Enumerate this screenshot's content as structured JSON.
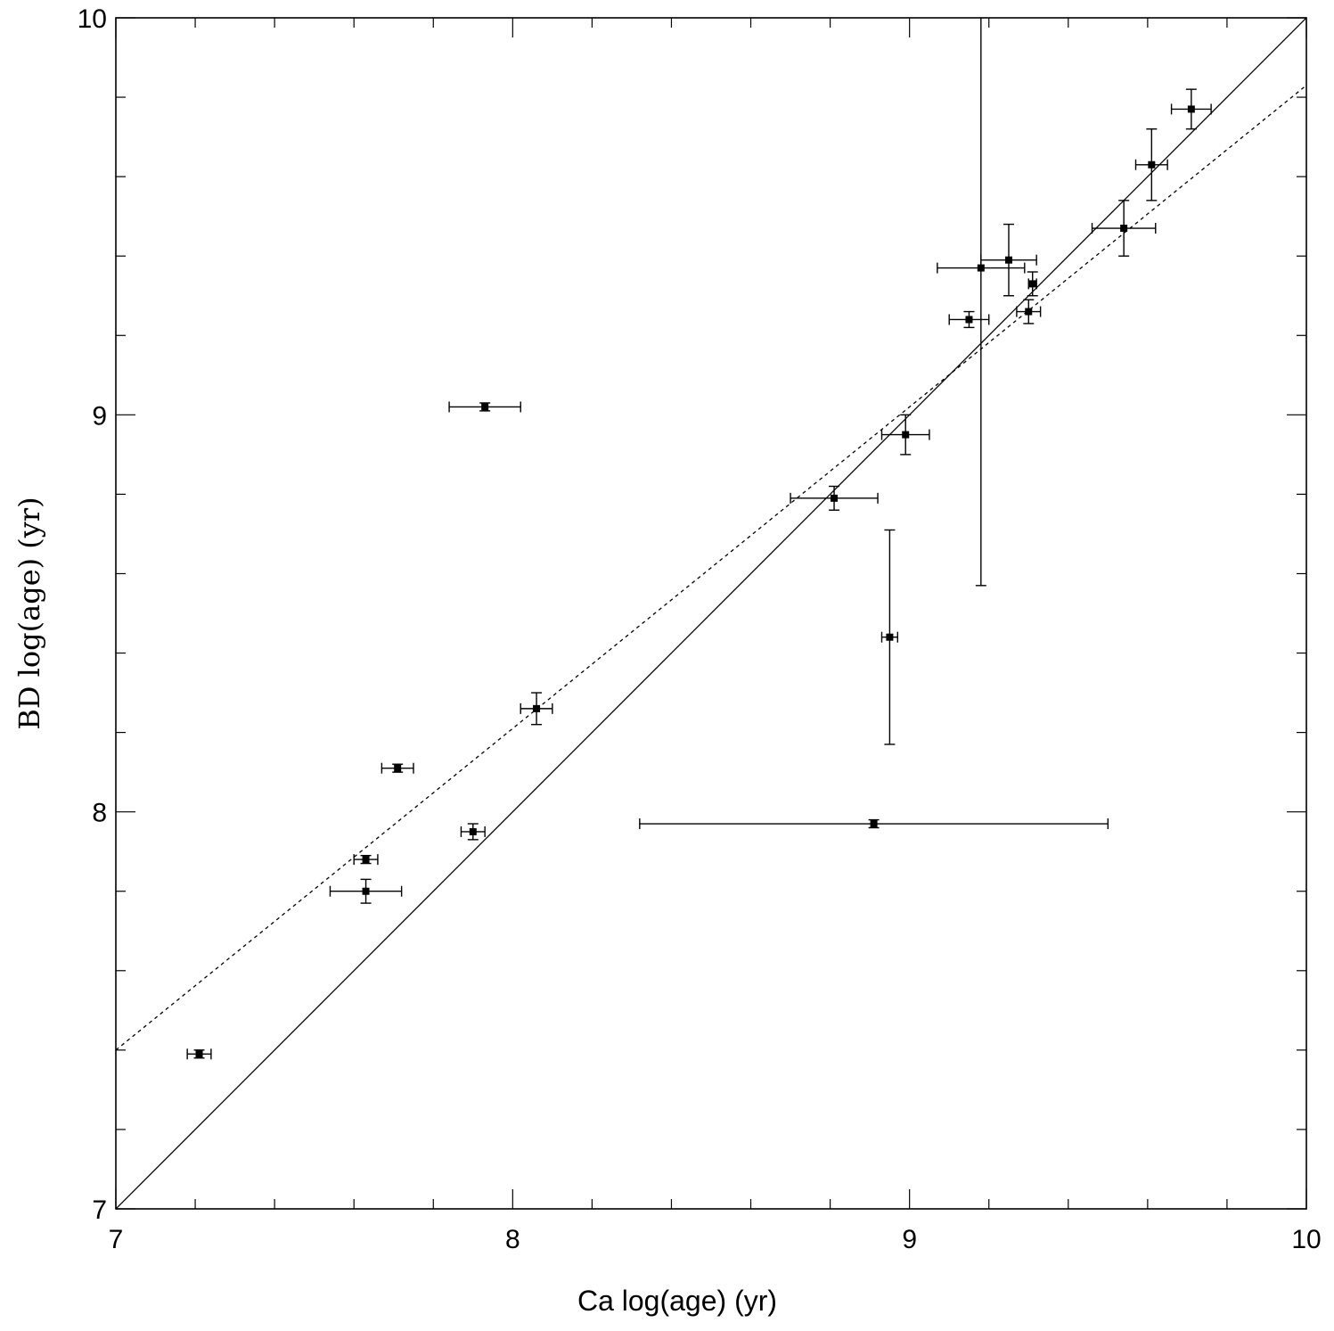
{
  "chart_data": {
    "type": "scatter",
    "title": "",
    "xlabel": "Ca log(age) (yr)",
    "ylabel": "BD log(age) (yr)",
    "xlim": [
      7,
      10
    ],
    "ylim": [
      7,
      10
    ],
    "x_ticks": [
      "7",
      "8",
      "9",
      "10"
    ],
    "y_ticks": [
      "7",
      "8",
      "9",
      "10"
    ],
    "grid": false,
    "legend": "none",
    "reference_lines": [
      {
        "style": "solid",
        "x": [
          7,
          10
        ],
        "y": [
          7,
          10
        ]
      },
      {
        "style": "dotted",
        "x": [
          7,
          10
        ],
        "y": [
          7.4,
          9.83
        ]
      }
    ],
    "points": [
      {
        "x": 7.21,
        "y": 7.39,
        "xerr": 0.03,
        "yerr": 0.01
      },
      {
        "x": 7.63,
        "y": 7.88,
        "xerr": 0.03,
        "yerr": 0.01
      },
      {
        "x": 7.63,
        "y": 7.8,
        "xerr": 0.09,
        "yerr": 0.03
      },
      {
        "x": 7.71,
        "y": 8.11,
        "xerr": 0.04,
        "yerr": 0.01
      },
      {
        "x": 7.9,
        "y": 7.95,
        "xerr": 0.03,
        "yerr": 0.02
      },
      {
        "x": 7.93,
        "y": 9.02,
        "xerr": 0.09,
        "yerr": 0.01
      },
      {
        "x": 8.06,
        "y": 8.26,
        "xerr": 0.04,
        "yerr": 0.04
      },
      {
        "x": 8.81,
        "y": 8.79,
        "xerr": 0.11,
        "yerr": 0.03
      },
      {
        "x": 8.91,
        "y": 7.97,
        "xerr": 0.59,
        "yerr": 0.01
      },
      {
        "x": 8.95,
        "y": 8.44,
        "xerr": 0.02,
        "yerr": 0.27
      },
      {
        "x": 8.99,
        "y": 8.95,
        "xerr": 0.06,
        "yerr": 0.05
      },
      {
        "x": 9.15,
        "y": 9.24,
        "xerr": 0.05,
        "yerr": 0.02
      },
      {
        "x": 9.18,
        "y": 9.37,
        "xerr": 0.11,
        "yerr": 0.8
      },
      {
        "x": 9.25,
        "y": 9.39,
        "xerr": 0.07,
        "yerr": 0.09
      },
      {
        "x": 9.3,
        "y": 9.26,
        "xerr": 0.03,
        "yerr": 0.03
      },
      {
        "x": 9.31,
        "y": 9.33,
        "xerr": 0.01,
        "yerr": 0.03
      },
      {
        "x": 9.54,
        "y": 9.47,
        "xerr": 0.08,
        "yerr": 0.07
      },
      {
        "x": 9.61,
        "y": 9.63,
        "xerr": 0.04,
        "yerr": 0.09
      },
      {
        "x": 9.71,
        "y": 9.77,
        "xerr": 0.05,
        "yerr": 0.05
      }
    ]
  }
}
